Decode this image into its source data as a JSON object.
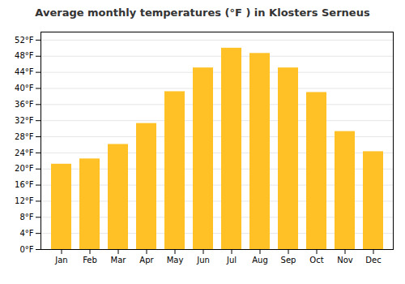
{
  "chart_data": {
    "type": "bar",
    "title": "Average monthly temperatures (°F ) in Klosters Serneus",
    "categories": [
      "Jan",
      "Feb",
      "Mar",
      "Apr",
      "May",
      "Jun",
      "Jul",
      "Aug",
      "Sep",
      "Oct",
      "Nov",
      "Dec"
    ],
    "values": [
      21.2,
      22.5,
      26.1,
      31.3,
      39.2,
      45.1,
      50.0,
      48.7,
      45.1,
      39.0,
      29.3,
      24.3
    ],
    "color": "#FFC125",
    "ylim": [
      0,
      54
    ],
    "yticks": [
      {
        "value": 0,
        "label": "0°F"
      },
      {
        "value": 4,
        "label": "4°F"
      },
      {
        "value": 8,
        "label": "8°F"
      },
      {
        "value": 12,
        "label": "12°F"
      },
      {
        "value": 16,
        "label": "16°F"
      },
      {
        "value": 20,
        "label": "20°F"
      },
      {
        "value": 24,
        "label": "24°F"
      },
      {
        "value": 28,
        "label": "28°F"
      },
      {
        "value": 32,
        "label": "32°F"
      },
      {
        "value": 36,
        "label": "36°F"
      },
      {
        "value": 40,
        "label": "40°F"
      },
      {
        "value": 44,
        "label": "44°F"
      },
      {
        "value": 48,
        "label": "48°F"
      },
      {
        "value": 52,
        "label": "52°F"
      }
    ],
    "grid": true
  }
}
